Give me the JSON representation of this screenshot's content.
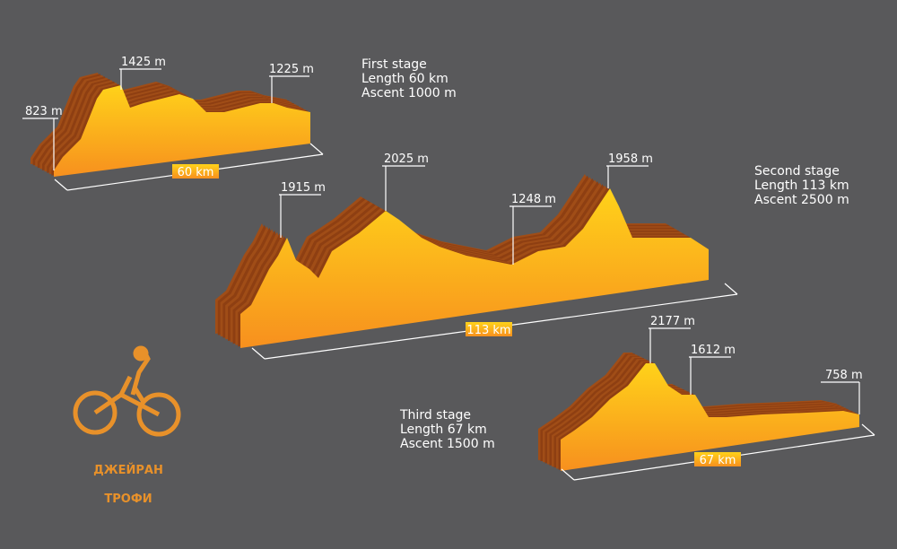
{
  "stages": [
    {
      "title": "First stage",
      "length": "Length 60 km",
      "ascent": "Ascent 1000 m",
      "distance": "60 km",
      "peaks": [
        "823 m",
        "1425 m",
        "1225 m"
      ]
    },
    {
      "title": "Second stage",
      "length": "Length 113 km",
      "ascent": "Ascent 2500 m",
      "distance": "113 km",
      "peaks": [
        "1915 m",
        "2025 m",
        "1248 m",
        "1958 m"
      ]
    },
    {
      "title": "Third stage",
      "length": "Length 67 km",
      "ascent": "Ascent 1500 m",
      "distance": "67 km",
      "peaks": [
        "2177 m",
        "1612 m",
        "758 m"
      ]
    }
  ],
  "logo": {
    "line1": "ДЖЕЙРАН",
    "line2": "ТРОФИ"
  }
}
